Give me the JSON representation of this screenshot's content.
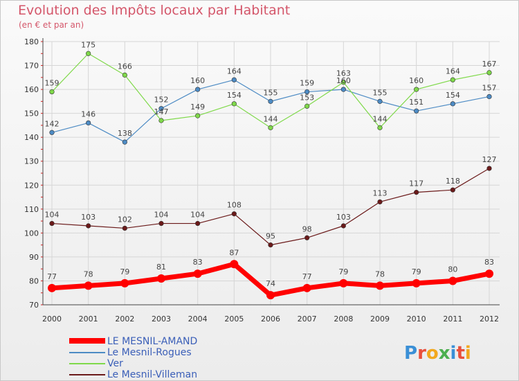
{
  "title": "Evolution des Impôts locaux par Habitant",
  "subtitle": "(en € et par an)",
  "logo_text": "Proxiti",
  "chart_data": {
    "type": "line",
    "categories": [
      "2000",
      "2001",
      "2002",
      "2003",
      "2004",
      "2005",
      "2006",
      "2007",
      "2008",
      "2009",
      "2010",
      "2011",
      "2012"
    ],
    "ylim": [
      70,
      180
    ],
    "yticks": [
      70,
      80,
      90,
      100,
      110,
      120,
      130,
      140,
      150,
      160,
      170,
      180
    ],
    "grid": true,
    "legend_position": "bottom-left",
    "series": [
      {
        "name": "LE MESNIL-AMAND",
        "color": "#ff0000",
        "values": [
          77,
          78,
          79,
          81,
          83,
          87,
          74,
          77,
          79,
          78,
          79,
          80,
          83
        ]
      },
      {
        "name": "Le Mesnil-Rogues",
        "color": "#4d8bc4",
        "values": [
          142,
          146,
          138,
          152,
          160,
          164,
          155,
          159,
          160,
          155,
          151,
          154,
          157
        ]
      },
      {
        "name": "Ver",
        "color": "#7fd94a",
        "values": [
          159,
          175,
          166,
          147,
          149,
          154,
          144,
          153,
          163,
          144,
          160,
          164,
          167
        ]
      },
      {
        "name": "Le Mesnil-Villeman",
        "color": "#6b1a1a",
        "values": [
          104,
          103,
          102,
          104,
          104,
          108,
          95,
          98,
          103,
          113,
          117,
          118,
          127
        ]
      }
    ]
  }
}
